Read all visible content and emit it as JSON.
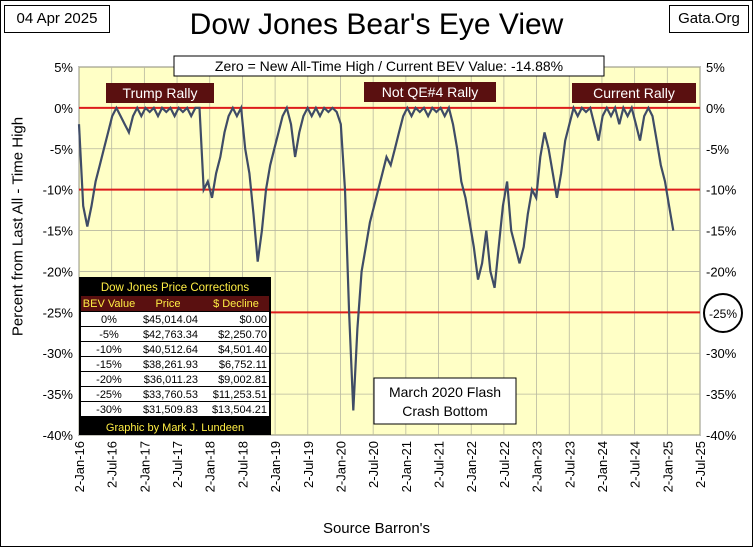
{
  "header": {
    "date": "04 Apr 2025",
    "title": "Dow Jones Bear's Eye View",
    "site": "Gata.Org"
  },
  "info_box": "Zero = New All-Time High / Current BEV Value:  -14.88%",
  "colors": {
    "plot_bg": "#ffffc6",
    "series": "#3f4c66",
    "ref_line": "#dd1c1c",
    "banner_bg": "#5a1010",
    "table_bg": "#000000",
    "table_text": "#ffee44"
  },
  "banners": [
    "Trump Rally",
    "Not QE#4 Rally",
    "Current Rally"
  ],
  "annotation": [
    "March 2020 Flash",
    "Crash Bottom"
  ],
  "circle_label": "-25%",
  "table": {
    "title": "Dow Jones Price Corrections",
    "headers": [
      "BEV Value",
      "Price",
      "$ Decline"
    ],
    "rows": [
      [
        "0%",
        "$45,014.04",
        "$0.00"
      ],
      [
        "-5%",
        "$42,763.34",
        "$2,250.70"
      ],
      [
        "-10%",
        "$40,512.64",
        "$4,501.40"
      ],
      [
        "-15%",
        "$38,261.93",
        "$6,752.11"
      ],
      [
        "-20%",
        "$36,011.23",
        "$9,002.81"
      ],
      [
        "-25%",
        "$33,760.53",
        "$11,253.51"
      ],
      [
        "-30%",
        "$31,509.83",
        "$13,504.21"
      ]
    ],
    "credit": "Graphic by Mark J. Lundeen"
  },
  "chart_data": {
    "type": "line",
    "ylabel": "Percent from Last All - Time High",
    "xlabel": "Source Barron's",
    "ylim": [
      -40,
      5
    ],
    "yticks": [
      "5%",
      "0%",
      "-5%",
      "-10%",
      "-15%",
      "-20%",
      "-25%",
      "-30%",
      "-35%",
      "-40%"
    ],
    "xticks": [
      "2-Jan-16",
      "2-Jul-16",
      "2-Jan-17",
      "2-Jul-17",
      "2-Jan-18",
      "2-Jul-18",
      "2-Jan-19",
      "2-Jul-19",
      "2-Jan-20",
      "2-Jul-20",
      "2-Jan-21",
      "2-Jul-21",
      "2-Jan-22",
      "2-Jul-22",
      "2-Jan-23",
      "2-Jul-23",
      "2-Jan-24",
      "2-Jul-24",
      "2-Jan-25",
      "2-Jul-25"
    ],
    "reference_lines": [
      0,
      -10,
      -25
    ],
    "grid": true,
    "series": [
      {
        "values": [
          -2,
          -12,
          -14.5,
          -12,
          -9,
          -7,
          -5,
          -3,
          -1,
          0,
          -1,
          -2,
          -3,
          -1,
          0,
          -1,
          0,
          -0.5,
          0,
          -1,
          0,
          -0.5,
          0,
          -1,
          0,
          -0.5,
          0,
          -1,
          0,
          0,
          -10,
          -9,
          -11,
          -8,
          -6,
          -3,
          -1,
          0,
          -1,
          0,
          -5,
          -8,
          -13,
          -18.8,
          -15,
          -10,
          -7,
          -5,
          -3,
          -1,
          0,
          -2,
          -6,
          -3,
          -1,
          0,
          -1,
          0,
          -1,
          0,
          -0.5,
          0,
          -0.5,
          -2,
          -10,
          -25,
          -37,
          -27,
          -20,
          -17,
          -14,
          -12,
          -10,
          -8,
          -6,
          -7,
          -5,
          -3,
          -1,
          0,
          -1,
          0,
          -0.5,
          0,
          -1,
          0,
          -0.5,
          0,
          -1,
          0,
          -2,
          -5,
          -9,
          -11,
          -14,
          -17,
          -21,
          -19,
          -15,
          -20,
          -22,
          -17,
          -12,
          -9,
          -15,
          -17,
          -19,
          -17,
          -13,
          -10,
          -11,
          -6,
          -3,
          -5,
          -8,
          -11,
          -8,
          -4,
          -2,
          0,
          -1,
          0,
          -0.5,
          0,
          -2,
          -4,
          -1,
          0,
          -1,
          0,
          -2,
          0,
          -1,
          0,
          -2,
          -4,
          -1,
          0,
          -1,
          -4,
          -7,
          -9,
          -12,
          -15
        ]
      }
    ]
  }
}
